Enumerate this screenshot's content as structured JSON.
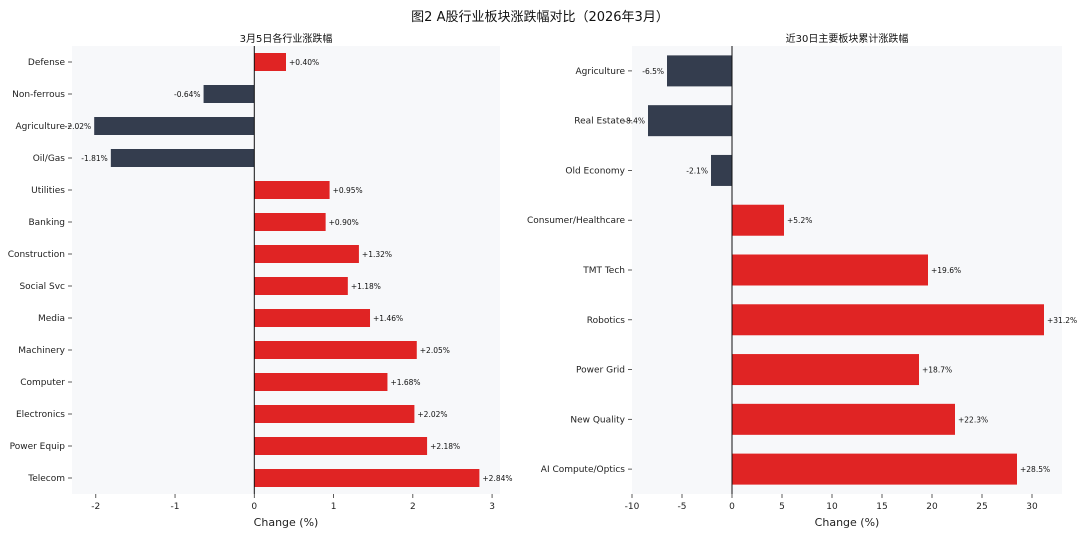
{
  "title": "图2 A股行业板块涨跌幅对比（2026年3月）",
  "colors": {
    "positive": "#e02424",
    "negative": "#343d4e",
    "zero_line": "#111111",
    "panel_bg": "#f7f8fa"
  },
  "chart_data": [
    {
      "type": "bar",
      "orientation": "horizontal",
      "title": "3月5日各行业涨跌幅",
      "xlabel": "Change (%)",
      "xlim": [
        -2.3,
        3.1
      ],
      "xticks": [
        -2,
        -1,
        0,
        1,
        2,
        3
      ],
      "xtick_labels": [
        "-2",
        "-1",
        "0",
        "1",
        "2",
        "3"
      ],
      "grid": false,
      "categories": [
        "Defense",
        "Non-ferrous",
        "Agriculture",
        "Oil/Gas",
        "Utilities",
        "Banking",
        "Construction",
        "Social Svc",
        "Media",
        "Machinery",
        "Computer",
        "Electronics",
        "Power Equip",
        "Telecom"
      ],
      "values": [
        0.4,
        -0.64,
        -2.02,
        -1.81,
        0.95,
        0.9,
        1.32,
        1.18,
        1.46,
        2.05,
        1.68,
        2.02,
        2.18,
        2.84
      ],
      "value_labels": [
        "+0.40%",
        "-0.64%",
        "-2.02%",
        "-1.81%",
        "+0.95%",
        "+0.90%",
        "+1.32%",
        "+1.18%",
        "+1.46%",
        "+2.05%",
        "+1.68%",
        "+2.02%",
        "+2.18%",
        "+2.84%"
      ]
    },
    {
      "type": "bar",
      "orientation": "horizontal",
      "title": "近30日主要板块累计涨跌幅",
      "xlabel": "Change (%)",
      "xlim": [
        -10,
        33
      ],
      "xticks": [
        -10,
        -5,
        0,
        5,
        10,
        15,
        20,
        25,
        30
      ],
      "xtick_labels": [
        "-10",
        "-5",
        "0",
        "5",
        "10",
        "15",
        "20",
        "25",
        "30"
      ],
      "grid": false,
      "categories": [
        "Agriculture",
        "Real Estate",
        "Old Economy",
        "Consumer/Healthcare",
        "TMT Tech",
        "Robotics",
        "Power Grid",
        "New Quality",
        "AI Compute/Optics"
      ],
      "values": [
        -6.5,
        -8.4,
        -2.1,
        5.2,
        19.6,
        31.2,
        18.7,
        22.3,
        28.5
      ],
      "value_labels": [
        "-6.5%",
        "-8.4%",
        "-2.1%",
        "+5.2%",
        "+19.6%",
        "+31.2%",
        "+18.7%",
        "+22.3%",
        "+28.5%"
      ]
    }
  ]
}
